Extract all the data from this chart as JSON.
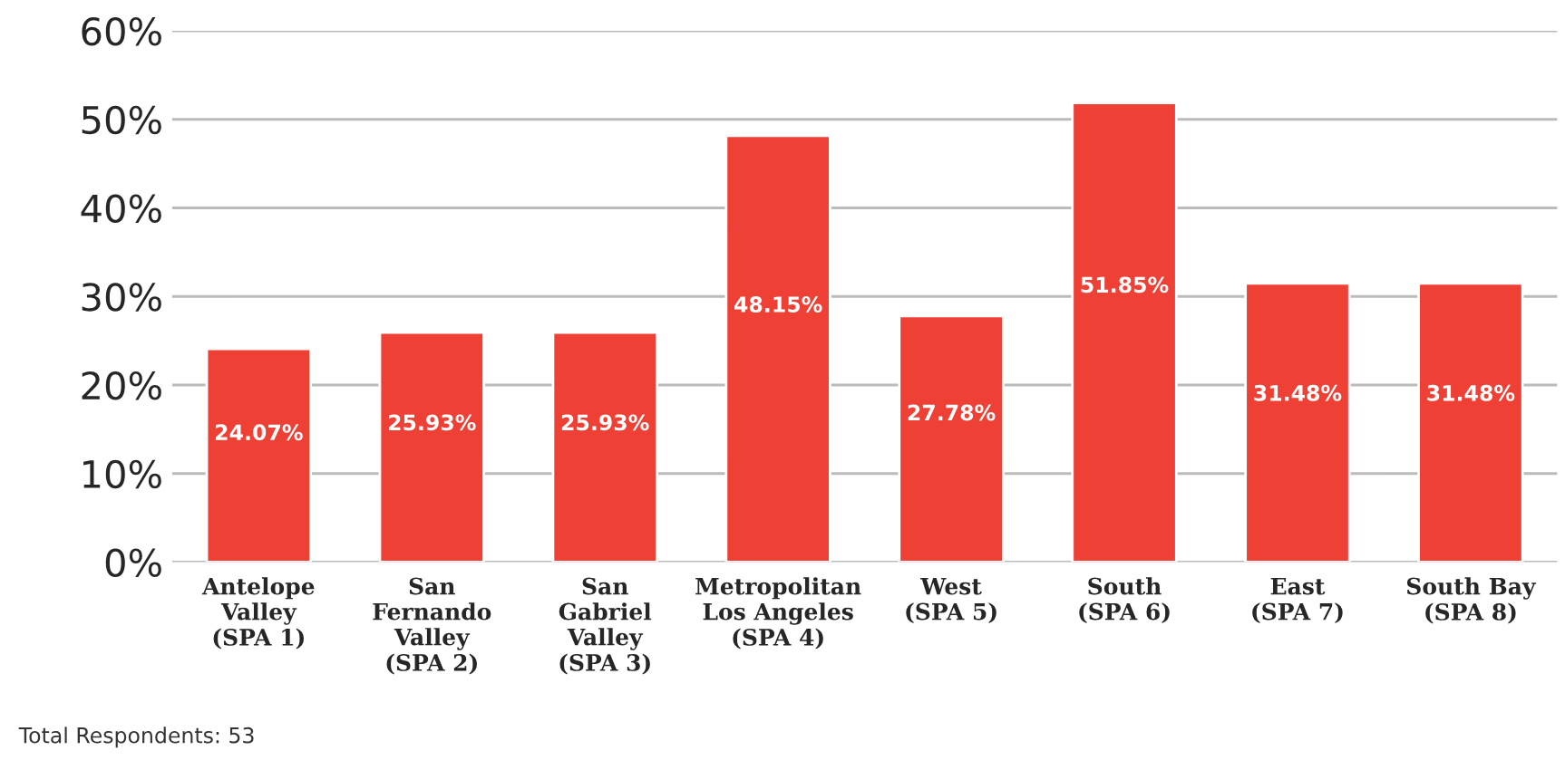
{
  "chart_data": {
    "type": "bar",
    "categories": [
      "Antelope\nValley\n(SPA 1)",
      "San\nFernando\nValley\n(SPA 2)",
      "San\nGabriel\nValley\n(SPA 3)",
      "Metropolitan\nLos Angeles\n(SPA 4)",
      "West\n(SPA 5)",
      "South\n(SPA 6)",
      "East\n(SPA 7)",
      "South Bay\n(SPA 8)"
    ],
    "values": [
      24.07,
      25.93,
      25.93,
      48.15,
      27.78,
      51.85,
      31.48,
      31.48
    ],
    "value_labels": [
      "24.07%",
      "25.93%",
      "25.93%",
      "48.15%",
      "27.78%",
      "51.85%",
      "31.48%",
      "31.48%"
    ],
    "color": "#ee4035",
    "ylim": [
      0,
      60
    ],
    "yticks": [
      {
        "value": 0,
        "label": "0%"
      },
      {
        "value": 10,
        "label": "10%"
      },
      {
        "value": 20,
        "label": "20%"
      },
      {
        "value": 30,
        "label": "30%"
      },
      {
        "value": 40,
        "label": "40%"
      },
      {
        "value": 50,
        "label": "50%"
      },
      {
        "value": 60,
        "label": "60%"
      }
    ],
    "grid": "y",
    "legend": false,
    "annotations": [
      "Total Respondents: 53"
    ]
  }
}
